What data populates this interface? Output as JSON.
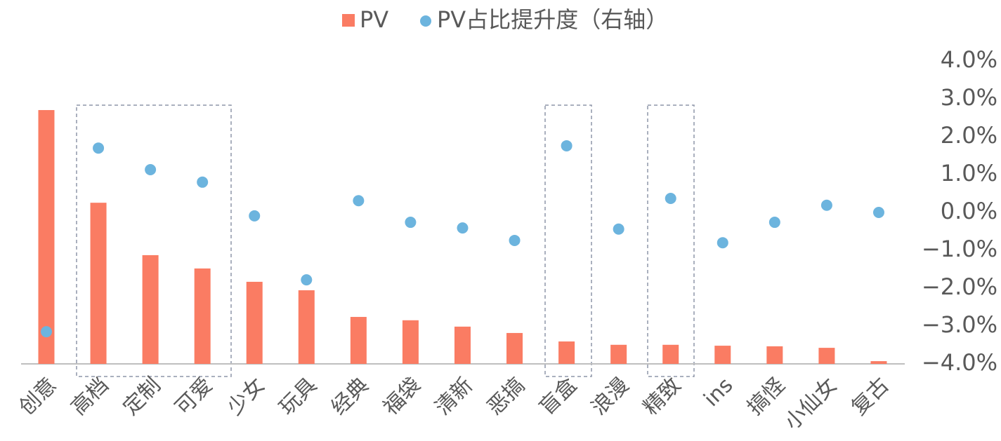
{
  "chart_data": {
    "type": "bar_scatter",
    "categories": [
      "创意",
      "高档",
      "定制",
      "可爱",
      "少女",
      "玩具",
      "经典",
      "福袋",
      "清新",
      "恶搞",
      "盲盒",
      "浪漫",
      "精致",
      "ins",
      "搞怪",
      "小仙女",
      "复古"
    ],
    "series": [
      {
        "name": "PV",
        "color": "#fa7c63",
        "values": [
          83.8,
          53.2,
          35.9,
          31.5,
          27.1,
          24.3,
          15.5,
          14.4,
          12.3,
          10.2,
          7.4,
          6.3,
          6.3,
          6.0,
          5.8,
          5.3,
          0.9
        ]
      },
      {
        "name": "PV占比提升度（右轴）",
        "color": "#6cb4de",
        "axis": "y2",
        "values": [
          -3.15,
          1.7,
          1.13,
          0.8,
          -0.09,
          -1.78,
          0.31,
          -0.26,
          -0.41,
          -0.74,
          1.76,
          -0.44,
          0.37,
          -0.8,
          -0.26,
          0.19,
          0.0
        ]
      }
    ],
    "ylim": [
      0,
      100
    ],
    "y2lim": [
      -4,
      4
    ],
    "y2ticks": [
      {
        "value": 4,
        "label": "4.0%"
      },
      {
        "value": 3,
        "label": "3.0%"
      },
      {
        "value": 2,
        "label": "2.0%"
      },
      {
        "value": 1,
        "label": "1.0%"
      },
      {
        "value": 0,
        "label": "0.0%"
      },
      {
        "value": -1,
        "label": "−1.0%"
      },
      {
        "value": -2,
        "label": "−2.0%"
      },
      {
        "value": -3,
        "label": "−3.0%"
      },
      {
        "value": -4,
        "label": "−4.0%"
      }
    ]
  }
}
